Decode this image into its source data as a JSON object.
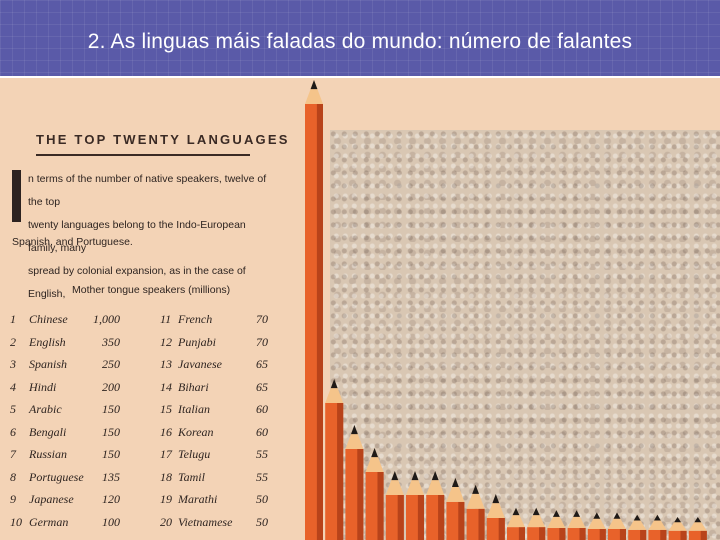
{
  "slide": {
    "title": "2. As linguas máis faladas do mundo: número de falantes"
  },
  "panel": {
    "heading": "THE TOP TWENTY LANGUAGES",
    "intro_lines": [
      "n terms of the number of native speakers, twelve of the top",
      "twenty languages belong to the Indo-European family, many",
      "spread by colonial expansion, as in the case of English,"
    ],
    "intro_tail": "Spanish, and Portuguese.",
    "table_caption": "Mother tongue speakers (millions)"
  },
  "colors": {
    "header_bg": "#5a5aa8",
    "pencil_body": "#e8622a",
    "pencil_shade": "#b8431a",
    "pencil_wood": "#f5c48a",
    "pencil_lead": "#1e1a18",
    "page_bg": "#f3d3b6"
  },
  "chart_data": {
    "type": "bar",
    "title": "THE TOP TWENTY LANGUAGES",
    "ylabel": "Mother tongue speakers (millions)",
    "ylim": [
      0,
      1000
    ],
    "rows": [
      {
        "rank": "1",
        "language": "Chinese",
        "value_label": "1,000"
      },
      {
        "rank": "2",
        "language": "English",
        "value_label": "350"
      },
      {
        "rank": "3",
        "language": "Spanish",
        "value_label": "250"
      },
      {
        "rank": "4",
        "language": "Hindi",
        "value_label": "200"
      },
      {
        "rank": "5",
        "language": "Arabic",
        "value_label": "150"
      },
      {
        "rank": "6",
        "language": "Bengali",
        "value_label": "150"
      },
      {
        "rank": "7",
        "language": "Russian",
        "value_label": "150"
      },
      {
        "rank": "8",
        "language": "Portuguese",
        "value_label": "135"
      },
      {
        "rank": "9",
        "language": "Japanese",
        "value_label": "120"
      },
      {
        "rank": "10",
        "language": "German",
        "value_label": "100"
      },
      {
        "rank": "11",
        "language": "French",
        "value_label": "70"
      },
      {
        "rank": "12",
        "language": "Punjabi",
        "value_label": "70"
      },
      {
        "rank": "13",
        "language": "Javanese",
        "value_label": "65"
      },
      {
        "rank": "14",
        "language": "Bihari",
        "value_label": "65"
      },
      {
        "rank": "15",
        "language": "Italian",
        "value_label": "60"
      },
      {
        "rank": "16",
        "language": "Korean",
        "value_label": "60"
      },
      {
        "rank": "17",
        "language": "Telugu",
        "value_label": "55"
      },
      {
        "rank": "18",
        "language": "Tamil",
        "value_label": "55"
      },
      {
        "rank": "19",
        "language": "Marathi",
        "value_label": "50"
      },
      {
        "rank": "20",
        "language": "Vietnamese",
        "value_label": "50"
      }
    ],
    "categories": [
      "Chinese",
      "English",
      "Spanish",
      "Hindi",
      "Arabic",
      "Bengali",
      "Russian",
      "Portuguese",
      "Japanese",
      "German",
      "French",
      "Punjabi",
      "Javanese",
      "Bihari",
      "Italian",
      "Korean",
      "Telugu",
      "Tamil",
      "Marathi",
      "Vietnamese"
    ],
    "values": [
      1000,
      350,
      250,
      200,
      150,
      150,
      150,
      135,
      120,
      100,
      70,
      70,
      65,
      65,
      60,
      60,
      55,
      55,
      50,
      50
    ]
  }
}
